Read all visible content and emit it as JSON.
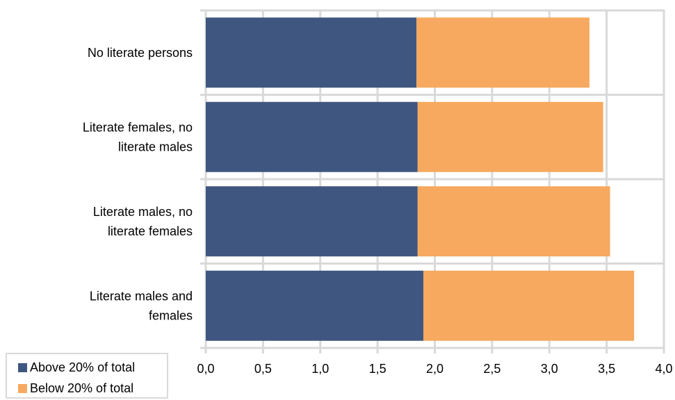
{
  "chart_data": {
    "type": "bar",
    "orientation": "horizontal",
    "stacked": true,
    "categories": [
      [
        "No literate persons"
      ],
      [
        "Literate females, no",
        "literate males"
      ],
      [
        "Literate males, no",
        "literate females"
      ],
      [
        "Literate males and",
        "females"
      ]
    ],
    "series": [
      {
        "name": "Above 20% of total",
        "color": "#3f5780",
        "values": [
          1.84,
          1.85,
          1.85,
          1.9
        ]
      },
      {
        "name": "Below 20% of total",
        "color": "#f6a95f",
        "values": [
          1.51,
          1.62,
          1.68,
          1.84
        ]
      }
    ],
    "x_ticks": [
      "0,0",
      "0,5",
      "1,0",
      "1,5",
      "2,0",
      "2,5",
      "3,0",
      "3,5",
      "4,0"
    ],
    "xlim": [
      0,
      4
    ],
    "grid": true,
    "legend_position": "bottom-left",
    "title": "",
    "xlabel": "",
    "ylabel": ""
  }
}
